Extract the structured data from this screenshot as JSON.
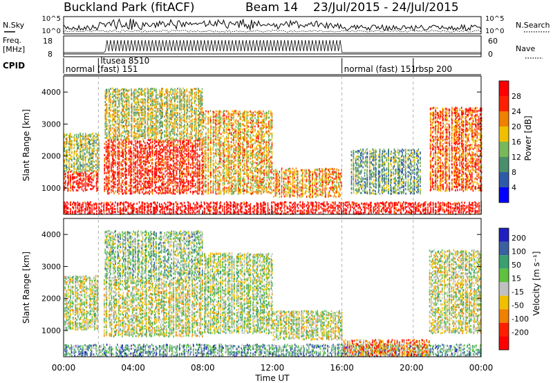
{
  "header": {
    "station": "Buckland Park (fitACF)",
    "beam": "Beam 14",
    "date_range": "23/Jul/2015 - 24/Jul/2015"
  },
  "status_panels": {
    "nsky_label": "N.Sky",
    "nsearch_label": "N.Search",
    "noise_ticks": [
      "10^5",
      "10^0"
    ],
    "freq_label": "Freq.",
    "freq_unit": "[MHz]",
    "freq_ticks": [
      "18",
      "8"
    ],
    "nave_label": "Nave",
    "nave_ticks": [
      "60",
      "0"
    ],
    "cpid_label": "CPID",
    "cpid_segments": [
      {
        "text": "normal (fast) 151",
        "start_h": 0.0
      },
      {
        "text": "ltusea 8510",
        "start_h": 2.0
      },
      {
        "text": "normal (fast) 151",
        "start_h": 16.0
      },
      {
        "text": "rbsp 200",
        "start_h": 20.1
      }
    ]
  },
  "chart_data": [
    {
      "type": "heatmap",
      "panel": "power",
      "ylabel": "Slant Range [km]",
      "xlabel": "Time UT",
      "x_ticks": [
        "00:00",
        "04:00",
        "08:00",
        "12:00",
        "16:00",
        "20:00",
        "00:00"
      ],
      "xlim_hours": [
        0,
        24
      ],
      "y_ticks": [
        1000,
        2000,
        3000,
        4000
      ],
      "ylim_km": [
        180,
        4500
      ],
      "colorbar": {
        "label": "Power [dB]",
        "ticks": [
          "4",
          "8",
          "12",
          "16",
          "20",
          "24",
          "28"
        ],
        "colors": [
          "#0000ff",
          "#2f5aa8",
          "#4b8f6a",
          "#78b85a",
          "#f0c000",
          "#f08000",
          "#ff2000",
          "#ff0000"
        ]
      },
      "regions": [
        {
          "t0": 0.0,
          "t1": 2.0,
          "r0": 900,
          "r1": 1500,
          "level": 0.9
        },
        {
          "t0": 0.0,
          "t1": 2.0,
          "r0": 1500,
          "r1": 2700,
          "level": 0.45
        },
        {
          "t0": 2.3,
          "t1": 8.0,
          "r0": 800,
          "r1": 2500,
          "level": 0.85
        },
        {
          "t0": 2.3,
          "t1": 8.0,
          "r0": 2500,
          "r1": 4100,
          "level": 0.5
        },
        {
          "t0": 8.0,
          "t1": 12.0,
          "r0": 800,
          "r1": 3400,
          "level": 0.6
        },
        {
          "t0": 12.0,
          "t1": 16.0,
          "r0": 700,
          "r1": 1600,
          "level": 0.65
        },
        {
          "t0": 0.0,
          "t1": 24.0,
          "r0": 180,
          "r1": 550,
          "level": 0.95
        },
        {
          "t0": 16.5,
          "t1": 20.5,
          "r0": 800,
          "r1": 2200,
          "level": 0.35
        },
        {
          "t0": 21.0,
          "t1": 24.0,
          "r0": 900,
          "r1": 3500,
          "level": 0.75
        }
      ]
    },
    {
      "type": "heatmap",
      "panel": "velocity",
      "ylabel": "Slant Range [km]",
      "xlabel": "Time UT",
      "x_ticks": [
        "00:00",
        "04:00",
        "08:00",
        "12:00",
        "16:00",
        "20:00",
        "00:00"
      ],
      "xlim_hours": [
        0,
        24
      ],
      "y_ticks": [
        1000,
        2000,
        3000,
        4000
      ],
      "ylim_km": [
        180,
        4500
      ],
      "colorbar": {
        "label": "Velocity [m s⁻¹]",
        "ticks": [
          "200",
          "100",
          "50",
          "15",
          "-15",
          "-50",
          "-100",
          "-200"
        ],
        "colors": [
          "#2020c0",
          "#3a60a0",
          "#3aa070",
          "#60c040",
          "#c0c0c0",
          "#f0c000",
          "#f08000",
          "#ff2000",
          "#ff0000"
        ]
      },
      "regions": [
        {
          "t0": 0.0,
          "t1": 2.0,
          "r0": 1000,
          "r1": 2700,
          "level": 0.5
        },
        {
          "t0": 2.3,
          "t1": 8.0,
          "r0": 800,
          "r1": 2600,
          "level": 0.5
        },
        {
          "t0": 2.3,
          "t1": 8.0,
          "r0": 2600,
          "r1": 4100,
          "level": 0.6
        },
        {
          "t0": 8.0,
          "t1": 12.0,
          "r0": 900,
          "r1": 3400,
          "level": 0.55
        },
        {
          "t0": 12.0,
          "t1": 16.0,
          "r0": 700,
          "r1": 1600,
          "level": 0.5
        },
        {
          "t0": 0.0,
          "t1": 24.0,
          "r0": 180,
          "r1": 550,
          "level": 0.7
        },
        {
          "t0": 16.0,
          "t1": 21.0,
          "r0": 180,
          "r1": 700,
          "level": 0.3
        },
        {
          "t0": 21.0,
          "t1": 24.0,
          "r0": 900,
          "r1": 3500,
          "level": 0.5
        }
      ]
    }
  ]
}
